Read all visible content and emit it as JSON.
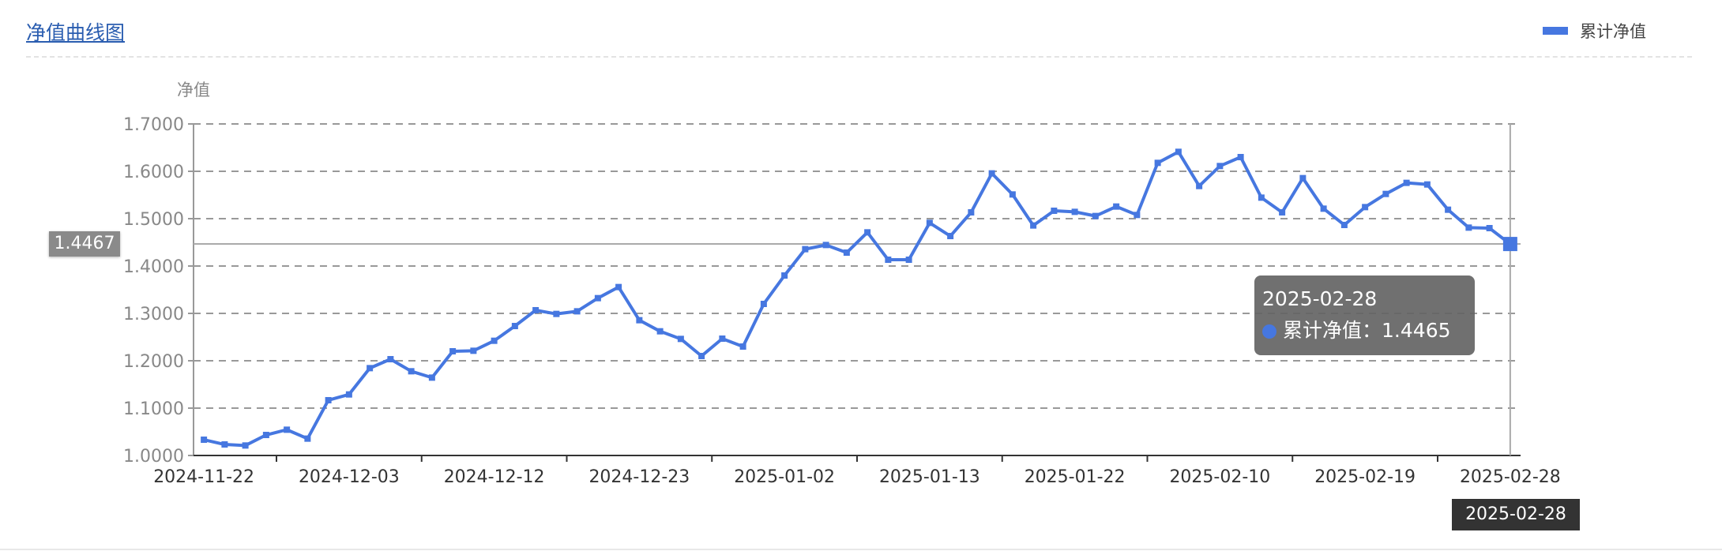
{
  "header": {
    "title": "净值曲线图"
  },
  "legend": {
    "label": "累计净值",
    "color": "#4677e0"
  },
  "tooltip": {
    "date": "2025-02-28",
    "series": "累计净值",
    "sep": "：",
    "value": "1.4465"
  },
  "pointer": {
    "y_value": "1.4467",
    "x_value": "2025-02-28"
  },
  "chart_data": {
    "type": "line",
    "title": "",
    "xlabel": "",
    "ylabel": "净值",
    "ylim": [
      1.0,
      1.7
    ],
    "yticks": [
      "1.7000",
      "1.6000",
      "1.5000",
      "1.4000",
      "1.3000",
      "1.2000",
      "1.1000",
      "1.0000"
    ],
    "xtick_labels": [
      "2024-11-22",
      "2024-12-03",
      "2024-12-12",
      "2024-12-23",
      "2025-01-02",
      "2025-01-13",
      "2025-01-22",
      "2025-02-10",
      "2025-02-19",
      "2025-02-28"
    ],
    "grid": "horizontal dashed",
    "legend_position": "top-right",
    "x": [
      "2024-11-22",
      "2024-11-25",
      "2024-11-26",
      "2024-11-27",
      "2024-11-28",
      "2024-11-29",
      "2024-12-02",
      "2024-12-03",
      "2024-12-04",
      "2024-12-05",
      "2024-12-06",
      "2024-12-09",
      "2024-12-10",
      "2024-12-11",
      "2024-12-12",
      "2024-12-13",
      "2024-12-16",
      "2024-12-17",
      "2024-12-18",
      "2024-12-19",
      "2024-12-20",
      "2024-12-23",
      "2024-12-24",
      "2024-12-25",
      "2024-12-26",
      "2024-12-27",
      "2024-12-30",
      "2024-12-31",
      "2025-01-02",
      "2025-01-03",
      "2025-01-06",
      "2025-01-07",
      "2025-01-08",
      "2025-01-09",
      "2025-01-10",
      "2025-01-13",
      "2025-01-14",
      "2025-01-15",
      "2025-01-16",
      "2025-01-17",
      "2025-01-20",
      "2025-01-21",
      "2025-01-22",
      "2025-01-23",
      "2025-01-24",
      "2025-01-27",
      "2025-02-05",
      "2025-02-06",
      "2025-02-07",
      "2025-02-10",
      "2025-02-11",
      "2025-02-12",
      "2025-02-13",
      "2025-02-14",
      "2025-02-17",
      "2025-02-18",
      "2025-02-19",
      "2025-02-20",
      "2025-02-21",
      "2025-02-24",
      "2025-02-25",
      "2025-02-26",
      "2025-02-27",
      "2025-02-28"
    ],
    "series": [
      {
        "name": "累计净值",
        "color": "#4677e0",
        "values": [
          1.0333,
          1.0233,
          1.0211,
          1.0433,
          1.0544,
          1.0356,
          1.1167,
          1.1289,
          1.1844,
          1.2033,
          1.1778,
          1.1644,
          1.22,
          1.2211,
          1.2422,
          1.2733,
          1.3067,
          1.2989,
          1.3044,
          1.3322,
          1.3556,
          1.2856,
          1.2622,
          1.2461,
          1.21,
          1.2467,
          1.23,
          1.32,
          1.38,
          1.4356,
          1.4444,
          1.4283,
          1.4711,
          1.4133,
          1.4133,
          1.4911,
          1.4633,
          1.5133,
          1.5956,
          1.5511,
          1.4856,
          1.5167,
          1.5144,
          1.5056,
          1.5256,
          1.5078,
          1.6178,
          1.6411,
          1.5689,
          1.6111,
          1.63,
          1.5444,
          1.5133,
          1.5856,
          1.5211,
          1.4867,
          1.5244,
          1.5522,
          1.5756,
          1.5722,
          1.5189,
          1.4811,
          1.48,
          1.4465
        ]
      }
    ]
  }
}
